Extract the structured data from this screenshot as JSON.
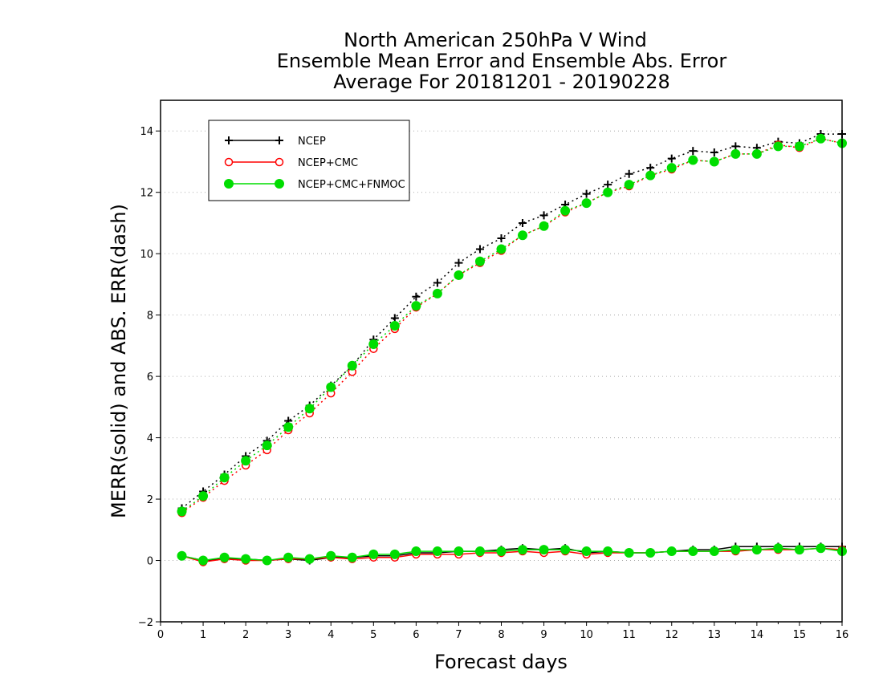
{
  "chart_data": {
    "type": "line",
    "title": [
      "North American 250hPa V Wind",
      "Ensemble Mean Error and Ensemble Abs. Error",
      "Average For 20181201 - 20190228"
    ],
    "xlabel": "Forecast days",
    "ylabel": "MERR(solid) and ABS. ERR(dash)",
    "xlim": [
      0,
      16
    ],
    "ylim": [
      -2,
      15
    ],
    "xticks": [
      0,
      1,
      2,
      3,
      4,
      5,
      6,
      7,
      8,
      9,
      10,
      11,
      12,
      13,
      14,
      15,
      16
    ],
    "yticks": [
      -2,
      0,
      2,
      4,
      6,
      8,
      10,
      12,
      14
    ],
    "grid": "horizontal dotted",
    "legend_position": "top-left",
    "x": [
      0.5,
      1.0,
      1.5,
      2.0,
      2.5,
      3.0,
      3.5,
      4.0,
      4.5,
      5.0,
      5.5,
      6.0,
      6.5,
      7.0,
      7.5,
      8.0,
      8.5,
      9.0,
      9.5,
      10.0,
      10.5,
      11.0,
      11.5,
      12.0,
      12.5,
      13.0,
      13.5,
      14.0,
      14.5,
      15.0,
      15.5,
      16.0
    ],
    "series": [
      {
        "name": "NCEP",
        "color": "#000000",
        "marker": "plus",
        "abs_err": [
          1.7,
          2.25,
          2.8,
          3.4,
          3.9,
          4.55,
          5.05,
          5.7,
          6.35,
          7.2,
          7.9,
          8.6,
          9.05,
          9.7,
          10.15,
          10.5,
          11.0,
          11.25,
          11.6,
          11.95,
          12.25,
          12.6,
          12.8,
          13.1,
          13.35,
          13.3,
          13.5,
          13.45,
          13.65,
          13.6,
          13.9,
          13.9
        ],
        "mean_err": [
          0.15,
          0.0,
          0.05,
          0.05,
          0.0,
          0.05,
          0.0,
          0.1,
          0.1,
          0.15,
          0.15,
          0.25,
          0.25,
          0.3,
          0.3,
          0.35,
          0.4,
          0.35,
          0.4,
          0.25,
          0.3,
          0.25,
          0.25,
          0.3,
          0.35,
          0.35,
          0.45,
          0.45,
          0.45,
          0.45,
          0.45,
          0.45
        ]
      },
      {
        "name": "NCEP+CMC",
        "color": "#ff0000",
        "marker": "open-circle",
        "abs_err": [
          1.55,
          2.05,
          2.6,
          3.1,
          3.6,
          4.25,
          4.8,
          5.45,
          6.15,
          6.9,
          7.55,
          8.25,
          8.7,
          9.3,
          9.7,
          10.1,
          10.6,
          10.9,
          11.35,
          11.65,
          12.0,
          12.2,
          12.55,
          12.75,
          13.05,
          13.0,
          13.25,
          13.25,
          13.55,
          13.45,
          13.75,
          13.6
        ],
        "mean_err": [
          0.15,
          -0.05,
          0.05,
          0.0,
          0.0,
          0.05,
          0.05,
          0.1,
          0.05,
          0.1,
          0.1,
          0.2,
          0.2,
          0.2,
          0.25,
          0.25,
          0.3,
          0.25,
          0.3,
          0.2,
          0.25,
          0.25,
          0.25,
          0.3,
          0.3,
          0.3,
          0.3,
          0.35,
          0.35,
          0.35,
          0.4,
          0.35
        ]
      },
      {
        "name": "NCEP+CMC+FNMOC",
        "color": "#00dd00",
        "marker": "filled-circle",
        "abs_err": [
          1.6,
          2.1,
          2.7,
          3.25,
          3.75,
          4.35,
          4.95,
          5.65,
          6.35,
          7.05,
          7.65,
          8.3,
          8.7,
          9.3,
          9.75,
          10.15,
          10.6,
          10.9,
          11.4,
          11.65,
          12.0,
          12.25,
          12.55,
          12.8,
          13.05,
          13.0,
          13.25,
          13.25,
          13.5,
          13.5,
          13.75,
          13.6
        ],
        "mean_err": [
          0.15,
          0.0,
          0.1,
          0.05,
          0.0,
          0.1,
          0.05,
          0.15,
          0.1,
          0.2,
          0.2,
          0.3,
          0.3,
          0.3,
          0.3,
          0.3,
          0.35,
          0.35,
          0.35,
          0.3,
          0.3,
          0.25,
          0.25,
          0.3,
          0.3,
          0.3,
          0.35,
          0.35,
          0.4,
          0.35,
          0.4,
          0.3
        ]
      }
    ]
  }
}
